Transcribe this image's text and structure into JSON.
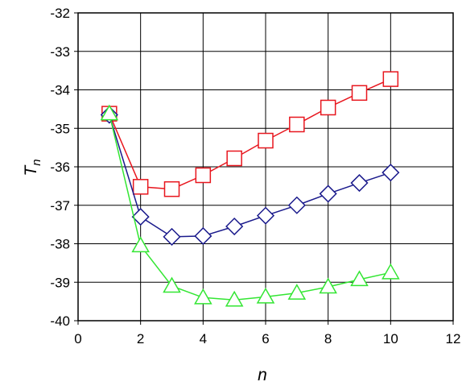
{
  "chart_data": {
    "type": "line",
    "xlabel": "n",
    "ylabel_main": "T",
    "ylabel_sub": "n",
    "xlim": [
      0,
      12
    ],
    "ylim": [
      -40,
      -32
    ],
    "xticks": [
      0,
      2,
      4,
      6,
      8,
      10,
      12
    ],
    "yticks": [
      -40,
      -39,
      -38,
      -37,
      -36,
      -35,
      -34,
      -33,
      -32
    ],
    "xtick_labels": [
      "0",
      "2",
      "4",
      "6",
      "8",
      "10",
      "12"
    ],
    "ytick_labels": [
      "-40",
      "-39",
      "-38",
      "-37",
      "-36",
      "-35",
      "-34",
      "-33",
      "-32"
    ],
    "grid": true,
    "series": [
      {
        "marker": "square",
        "color": "#e8161e",
        "x": [
          1,
          2,
          3,
          4,
          5,
          6,
          7,
          8,
          9,
          10
        ],
        "y": [
          -34.62,
          -36.52,
          -36.58,
          -36.22,
          -35.78,
          -35.32,
          -34.9,
          -34.46,
          -34.08,
          -33.72
        ]
      },
      {
        "marker": "diamond",
        "color": "#1a1a8c",
        "x": [
          1,
          2,
          3,
          4,
          5,
          6,
          7,
          8,
          9,
          10
        ],
        "y": [
          -34.65,
          -37.3,
          -37.82,
          -37.8,
          -37.55,
          -37.27,
          -37.0,
          -36.7,
          -36.42,
          -36.15
        ]
      },
      {
        "marker": "triangle",
        "color": "#33e633",
        "x": [
          1,
          2,
          3,
          4,
          5,
          6,
          7,
          8,
          9,
          10
        ],
        "y": [
          -34.62,
          -38.05,
          -39.1,
          -39.4,
          -39.46,
          -39.38,
          -39.28,
          -39.12,
          -38.93,
          -38.75
        ]
      }
    ]
  }
}
